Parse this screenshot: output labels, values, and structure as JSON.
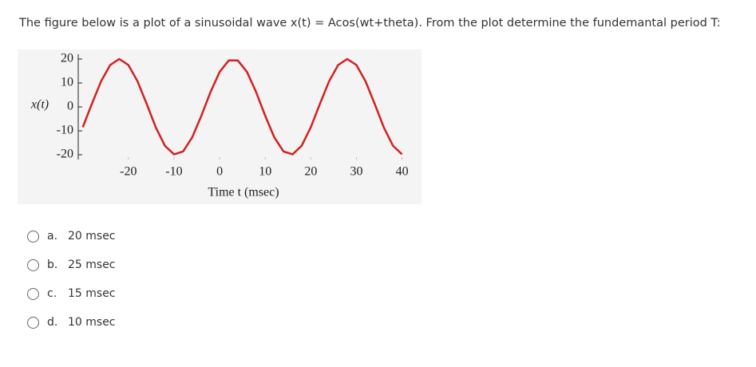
{
  "question": "The figure below is a plot of a sinusoidal wave x(t) = Acos(wt+theta). From the plot determine the fundemantal period T:",
  "chart_data": {
    "type": "line",
    "ylabel": "x(t)",
    "xlabel": "Time t (msec)",
    "x": [
      -30,
      -28,
      -26,
      -24,
      -22,
      -20,
      -18,
      -16,
      -14,
      -12,
      -10,
      -8,
      -6,
      -4,
      -2,
      0,
      2,
      4,
      6,
      8,
      10,
      12,
      14,
      16,
      18,
      20,
      22,
      24,
      26,
      28,
      30,
      32,
      34,
      36,
      38,
      40
    ],
    "y": [
      -8.5,
      1.3,
      10.7,
      17.5,
      20,
      17.5,
      10.7,
      1.3,
      -8.5,
      -16.2,
      -19.8,
      -18.6,
      -12.7,
      -3.7,
      6.2,
      14.6,
      19.4,
      19.4,
      14.6,
      6.2,
      -3.7,
      -12.7,
      -18.6,
      -19.8,
      -16.2,
      -8.5,
      1.3,
      10.7,
      17.5,
      20,
      17.5,
      10.7,
      1.3,
      -8.5,
      -16.2,
      -19.8
    ],
    "color": "#d42020",
    "xlim": [
      -31,
      42
    ],
    "ylim": [
      -22,
      22
    ],
    "xticks": [
      -20,
      -10,
      0,
      10,
      20,
      30,
      40
    ],
    "yticks": [
      -20,
      -10,
      0,
      10,
      20
    ]
  },
  "options": [
    {
      "letter": "a.",
      "text": "20 msec"
    },
    {
      "letter": "b.",
      "text": "25 msec"
    },
    {
      "letter": "c.",
      "text": "15 msec"
    },
    {
      "letter": "d.",
      "text": "10 msec"
    }
  ]
}
